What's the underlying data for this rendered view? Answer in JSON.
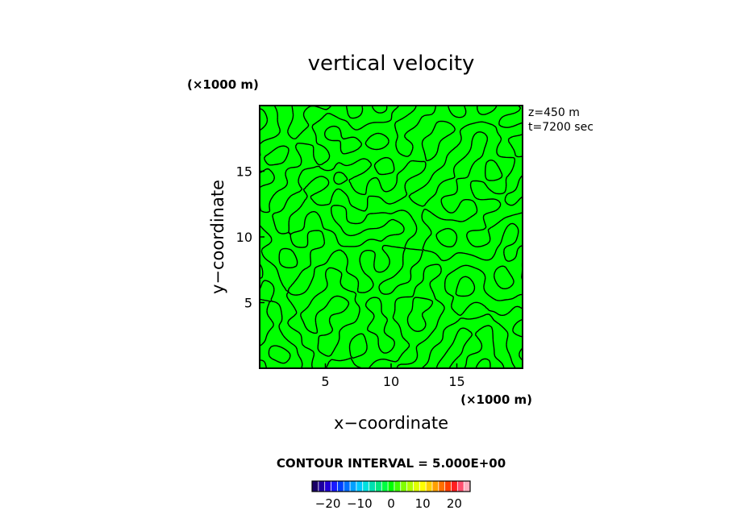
{
  "chart_data": {
    "type": "heatmap",
    "title": "vertical velocity",
    "xlabel": "x−coordinate",
    "ylabel": "y−coordinate",
    "x_unit": "(×1000 m)",
    "y_unit": "(×1000 m)",
    "xlim": [
      0,
      20
    ],
    "ylim": [
      0,
      20
    ],
    "x_ticks": [
      5,
      10,
      15
    ],
    "y_ticks": [
      5,
      10,
      15
    ],
    "x_tick_labels": [
      "5",
      "10",
      "15"
    ],
    "y_tick_labels": [
      "5",
      "10",
      "15"
    ],
    "field_fill_color": "#00ff00",
    "contour_color": "#000000",
    "contour_interval_label": "CONTOUR INTERVAL = 5.000E+00",
    "contour_interval": 5,
    "annotations": [
      "z=450  m",
      "t=7200  sec"
    ],
    "colorbar": {
      "range": [
        -25,
        25
      ],
      "tick_values": [
        -20,
        -10,
        0,
        10,
        20
      ],
      "tick_labels": [
        "−20",
        "−10",
        "0",
        "10",
        "20"
      ],
      "colors": [
        "#1a0066",
        "#1e00a0",
        "#2200d8",
        "#1a1aff",
        "#0040ff",
        "#0070ff",
        "#00a0ff",
        "#00c8ff",
        "#00e0e0",
        "#00e0b0",
        "#00e880",
        "#00ff40",
        "#00ff00",
        "#40ff00",
        "#80ff00",
        "#b0ff00",
        "#e0ff00",
        "#ffff00",
        "#ffd000",
        "#ffa000",
        "#ff7000",
        "#ff4000",
        "#ff2020",
        "#ff5070",
        "#ffb0c0"
      ]
    }
  }
}
